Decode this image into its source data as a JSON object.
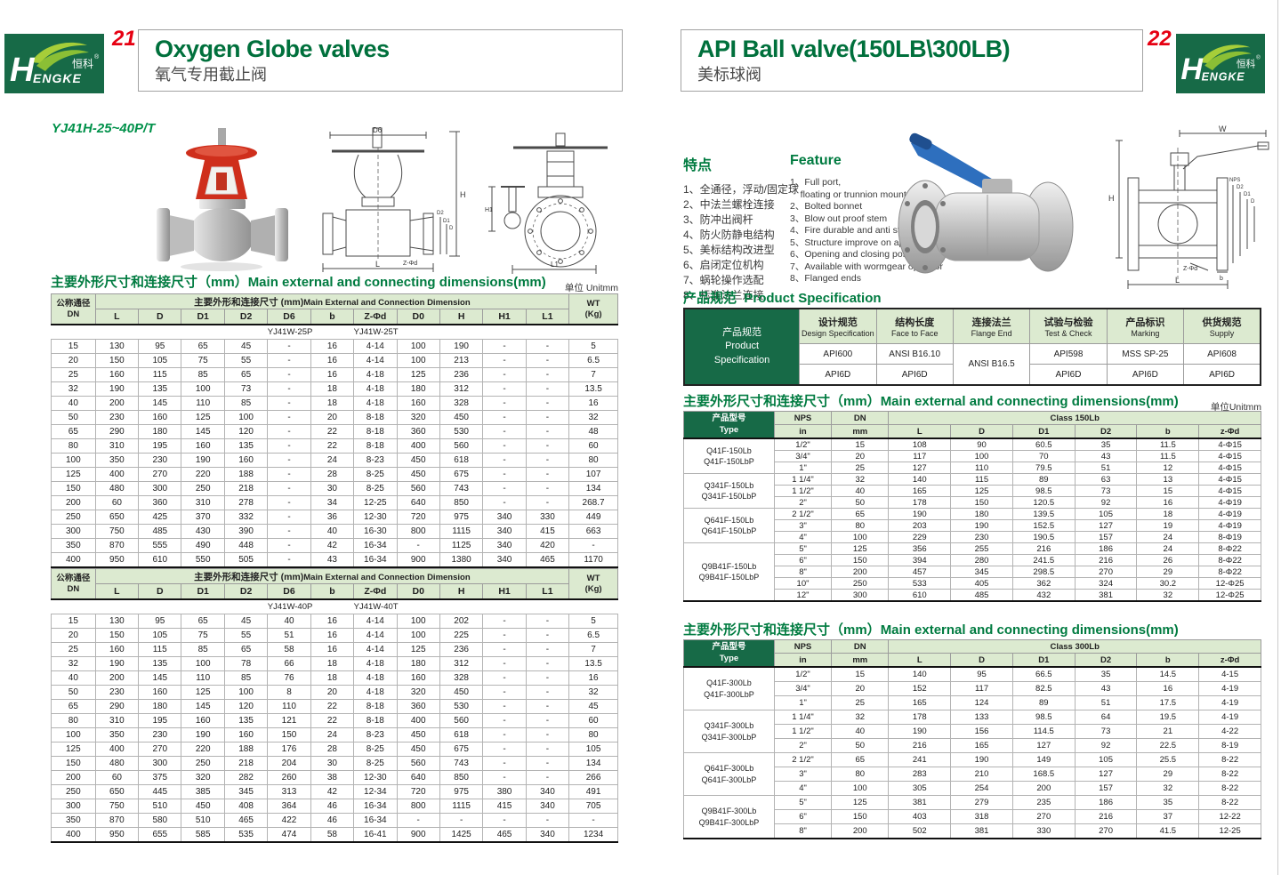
{
  "brand": {
    "latin": "HENGKE",
    "cn": "恒科",
    "reg": "®"
  },
  "page_left": {
    "page_number": "21",
    "title_en": "Oxygen Globe valves",
    "title_cn": "氧气专用截止阀",
    "model_label": "YJ41H-25~40P/T",
    "section_title_cn": "主要外形尺寸和连接尺寸（mm）",
    "section_title_en": "Main external and connecting dimensions(mm)",
    "unit_label": "单位 Unitmm",
    "table_header": {
      "dn_cn": "公称通径",
      "dn_en": "DN",
      "group_cn": "主要外形和连接尺寸 (mm)",
      "group_en": "Main External and Connection Dimension",
      "wt_line1": "WT",
      "wt_line2": "(Kg)",
      "columns": [
        "L",
        "D",
        "D1",
        "D2",
        "D6",
        "b",
        "Z-Φd",
        "D0",
        "H",
        "H1",
        "L1"
      ]
    },
    "tables": [
      {
        "models": [
          "YJ41W-25P",
          "YJ41W-25T"
        ],
        "rows": [
          [
            "15",
            "130",
            "95",
            "65",
            "45",
            "-",
            "16",
            "4-14",
            "100",
            "190",
            "-",
            "-",
            "5"
          ],
          [
            "20",
            "150",
            "105",
            "75",
            "55",
            "-",
            "16",
            "4-14",
            "100",
            "213",
            "-",
            "-",
            "6.5"
          ],
          [
            "25",
            "160",
            "115",
            "85",
            "65",
            "-",
            "16",
            "4-18",
            "125",
            "236",
            "-",
            "-",
            "7"
          ],
          [
            "32",
            "190",
            "135",
            "100",
            "73",
            "-",
            "18",
            "4-18",
            "180",
            "312",
            "-",
            "-",
            "13.5"
          ],
          [
            "40",
            "200",
            "145",
            "110",
            "85",
            "-",
            "18",
            "4-18",
            "160",
            "328",
            "-",
            "-",
            "16"
          ],
          [
            "50",
            "230",
            "160",
            "125",
            "100",
            "-",
            "20",
            "8-18",
            "320",
            "450",
            "-",
            "-",
            "32"
          ],
          [
            "65",
            "290",
            "180",
            "145",
            "120",
            "-",
            "22",
            "8-18",
            "360",
            "530",
            "-",
            "-",
            "48"
          ],
          [
            "80",
            "310",
            "195",
            "160",
            "135",
            "-",
            "22",
            "8-18",
            "400",
            "560",
            "-",
            "-",
            "60"
          ],
          [
            "100",
            "350",
            "230",
            "190",
            "160",
            "-",
            "24",
            "8-23",
            "450",
            "618",
            "-",
            "-",
            "80"
          ],
          [
            "125",
            "400",
            "270",
            "220",
            "188",
            "-",
            "28",
            "8-25",
            "450",
            "675",
            "-",
            "-",
            "107"
          ],
          [
            "150",
            "480",
            "300",
            "250",
            "218",
            "-",
            "30",
            "8-25",
            "560",
            "743",
            "-",
            "-",
            "134"
          ],
          [
            "200",
            "60",
            "360",
            "310",
            "278",
            "-",
            "34",
            "12-25",
            "640",
            "850",
            "-",
            "-",
            "268.7"
          ],
          [
            "250",
            "650",
            "425",
            "370",
            "332",
            "-",
            "36",
            "12-30",
            "720",
            "975",
            "340",
            "330",
            "449"
          ],
          [
            "300",
            "750",
            "485",
            "430",
            "390",
            "-",
            "40",
            "16-30",
            "800",
            "1115",
            "340",
            "415",
            "663"
          ],
          [
            "350",
            "870",
            "555",
            "490",
            "448",
            "-",
            "42",
            "16-34",
            "-",
            "1125",
            "340",
            "420",
            "-"
          ],
          [
            "400",
            "950",
            "610",
            "550",
            "505",
            "-",
            "43",
            "16-34",
            "900",
            "1380",
            "340",
            "465",
            "1170"
          ]
        ]
      },
      {
        "models": [
          "YJ41W-40P",
          "YJ41W-40T"
        ],
        "rows": [
          [
            "15",
            "130",
            "95",
            "65",
            "45",
            "40",
            "16",
            "4-14",
            "100",
            "202",
            "-",
            "-",
            "5"
          ],
          [
            "20",
            "150",
            "105",
            "75",
            "55",
            "51",
            "16",
            "4-14",
            "100",
            "225",
            "-",
            "-",
            "6.5"
          ],
          [
            "25",
            "160",
            "115",
            "85",
            "65",
            "58",
            "16",
            "4-14",
            "125",
            "236",
            "-",
            "-",
            "7"
          ],
          [
            "32",
            "190",
            "135",
            "100",
            "78",
            "66",
            "18",
            "4-18",
            "180",
            "312",
            "-",
            "-",
            "13.5"
          ],
          [
            "40",
            "200",
            "145",
            "110",
            "85",
            "76",
            "18",
            "4-18",
            "160",
            "328",
            "-",
            "-",
            "16"
          ],
          [
            "50",
            "230",
            "160",
            "125",
            "100",
            "8",
            "20",
            "4-18",
            "320",
            "450",
            "-",
            "-",
            "32"
          ],
          [
            "65",
            "290",
            "180",
            "145",
            "120",
            "110",
            "22",
            "8-18",
            "360",
            "530",
            "-",
            "-",
            "45"
          ],
          [
            "80",
            "310",
            "195",
            "160",
            "135",
            "121",
            "22",
            "8-18",
            "400",
            "560",
            "-",
            "-",
            "60"
          ],
          [
            "100",
            "350",
            "230",
            "190",
            "160",
            "150",
            "24",
            "8-23",
            "450",
            "618",
            "-",
            "-",
            "80"
          ],
          [
            "125",
            "400",
            "270",
            "220",
            "188",
            "176",
            "28",
            "8-25",
            "450",
            "675",
            "-",
            "-",
            "105"
          ],
          [
            "150",
            "480",
            "300",
            "250",
            "218",
            "204",
            "30",
            "8-25",
            "560",
            "743",
            "-",
            "-",
            "134"
          ],
          [
            "200",
            "60",
            "375",
            "320",
            "282",
            "260",
            "38",
            "12-30",
            "640",
            "850",
            "-",
            "-",
            "266"
          ],
          [
            "250",
            "650",
            "445",
            "385",
            "345",
            "313",
            "42",
            "12-34",
            "720",
            "975",
            "380",
            "340",
            "491"
          ],
          [
            "300",
            "750",
            "510",
            "450",
            "408",
            "364",
            "46",
            "16-34",
            "800",
            "1115",
            "415",
            "340",
            "705"
          ],
          [
            "350",
            "870",
            "580",
            "510",
            "465",
            "422",
            "46",
            "16-34",
            "-",
            "-",
            "-",
            "-",
            "-"
          ],
          [
            "400",
            "950",
            "655",
            "585",
            "535",
            "474",
            "58",
            "16-41",
            "900",
            "1425",
            "465",
            "340",
            "1234"
          ]
        ]
      }
    ],
    "drawing_labels": {
      "d6": "D6",
      "h": "H",
      "l": "L",
      "zfd": "Z-Φd",
      "d2": "D2",
      "d1": "D1",
      "d": "D",
      "h1": "H1",
      "l1": "L1"
    }
  },
  "page_right": {
    "page_number": "22",
    "title_en": "API Ball valve(150LB\\300LB)",
    "title_cn": "美标球阀",
    "features_cn": {
      "heading": "特点",
      "items": [
        "1、全通径，浮动/固定球",
        "2、中法兰螺栓连接",
        "3、防冲出阀杆",
        "4、防火防静电结构",
        "5、美标结构改进型",
        "6、启闭定位机构",
        "7、蜗轮操作选配",
        "8、标准法兰连接"
      ]
    },
    "features_en": {
      "heading": "Feature",
      "items": [
        "1、Full port,\n    floating or trunnion mounte type",
        "2、Bolted bonnet",
        "3、Blow out proof stem",
        "4、Fire durable and anti static safety",
        "5、Structure improve on api",
        "6、Opening and closing position",
        "7、Available with wormgear operator",
        "8、Flanged ends"
      ]
    },
    "spec": {
      "title_cn": "产品规范",
      "title_en": "Product Specification",
      "row_header": {
        "cn": "产品规范",
        "en1": "Product",
        "en2": "Specification"
      },
      "columns": [
        {
          "cn": "设计规范",
          "en": "Design Specification",
          "v1": "API600",
          "v2": "API6D"
        },
        {
          "cn": "结构长度",
          "en": "Face to Face",
          "v1": "ANSI B16.10",
          "v2": "API6D"
        },
        {
          "cn": "连接法兰",
          "en": "Flange End",
          "merged": "ANSI B16.5"
        },
        {
          "cn": "试验与检验",
          "en": "Test & Check",
          "v1": "API598",
          "v2": "API6D"
        },
        {
          "cn": "产品标识",
          "en": "Marking",
          "v1": "MSS SP-25",
          "v2": "API6D"
        },
        {
          "cn": "供货规范",
          "en": "Supply",
          "v1": "API608",
          "v2": "API6D"
        }
      ]
    },
    "dim150": {
      "section_title_cn": "主要外形尺寸和连接尺寸（mm）",
      "section_title_en": "Main external and connecting dimensions(mm)",
      "unit_label": "单位Unitmm",
      "header": {
        "type_cn": "产品型号",
        "type_en": "Type",
        "nps": "NPS",
        "dn": "DN",
        "in": "in",
        "mm": "mm",
        "class_label": "Class 150Lb",
        "columns": [
          "L",
          "D",
          "D1",
          "D2",
          "b",
          "z-Φd"
        ]
      },
      "groups": [
        {
          "type": [
            "Q41F-150Lb",
            "Q41F-150LbP"
          ],
          "rows": [
            [
              "1/2\"",
              "15",
              "108",
              "90",
              "60.5",
              "35",
              "11.5",
              "4-Φ15"
            ],
            [
              "3/4\"",
              "20",
              "117",
              "100",
              "70",
              "43",
              "11.5",
              "4-Φ15"
            ],
            [
              "1\"",
              "25",
              "127",
              "110",
              "79.5",
              "51",
              "12",
              "4-Φ15"
            ]
          ]
        },
        {
          "type": [
            "Q341F-150Lb",
            "Q341F-150LbP"
          ],
          "rows": [
            [
              "1 1/4\"",
              "32",
              "140",
              "115",
              "89",
              "63",
              "13",
              "4-Φ15"
            ],
            [
              "1 1/2\"",
              "40",
              "165",
              "125",
              "98.5",
              "73",
              "15",
              "4-Φ15"
            ],
            [
              "2\"",
              "50",
              "178",
              "150",
              "120.5",
              "92",
              "16",
              "4-Φ19"
            ]
          ]
        },
        {
          "type": [
            "Q641F-150Lb",
            "Q641F-150LbP"
          ],
          "rows": [
            [
              "2 1/2\"",
              "65",
              "190",
              "180",
              "139.5",
              "105",
              "18",
              "4-Φ19"
            ],
            [
              "3\"",
              "80",
              "203",
              "190",
              "152.5",
              "127",
              "19",
              "4-Φ19"
            ],
            [
              "4\"",
              "100",
              "229",
              "230",
              "190.5",
              "157",
              "24",
              "8-Φ19"
            ]
          ]
        },
        {
          "type": [
            "Q9B41F-150Lb",
            "Q9B41F-150LbP"
          ],
          "rows": [
            [
              "5\"",
              "125",
              "356",
              "255",
              "216",
              "186",
              "24",
              "8-Φ22"
            ],
            [
              "6\"",
              "150",
              "394",
              "280",
              "241.5",
              "216",
              "26",
              "8-Φ22"
            ],
            [
              "8\"",
              "200",
              "457",
              "345",
              "298.5",
              "270",
              "29",
              "8-Φ22"
            ],
            [
              "10\"",
              "250",
              "533",
              "405",
              "362",
              "324",
              "30.2",
              "12-Φ25"
            ],
            [
              "12\"",
              "300",
              "610",
              "485",
              "432",
              "381",
              "32",
              "12-Φ25"
            ]
          ]
        }
      ]
    },
    "dim300": {
      "section_title_cn": "主要外形尺寸和连接尺寸（mm）",
      "section_title_en": "Main external and connecting dimensions(mm)",
      "header": {
        "type_cn": "产品型号",
        "type_en": "Type",
        "nps": "NPS",
        "dn": "DN",
        "in": "in",
        "mm": "mm",
        "class_label": "Class 300Lb",
        "columns": [
          "L",
          "D",
          "D1",
          "D2",
          "b",
          "z-Φd"
        ]
      },
      "groups": [
        {
          "type": [
            "Q41F-300Lb",
            "Q41F-300LbP"
          ],
          "rows": [
            [
              "1/2\"",
              "15",
              "140",
              "95",
              "66.5",
              "35",
              "14.5",
              "4-15"
            ],
            [
              "3/4\"",
              "20",
              "152",
              "117",
              "82.5",
              "43",
              "16",
              "4-19"
            ],
            [
              "1\"",
              "25",
              "165",
              "124",
              "89",
              "51",
              "17.5",
              "4-19"
            ]
          ]
        },
        {
          "type": [
            "Q341F-300Lb",
            "Q341F-300LbP"
          ],
          "rows": [
            [
              "1 1/4\"",
              "32",
              "178",
              "133",
              "98.5",
              "64",
              "19.5",
              "4-19"
            ],
            [
              "1 1/2\"",
              "40",
              "190",
              "156",
              "114.5",
              "73",
              "21",
              "4-22"
            ],
            [
              "2\"",
              "50",
              "216",
              "165",
              "127",
              "92",
              "22.5",
              "8-19"
            ]
          ]
        },
        {
          "type": [
            "Q641F-300Lb",
            "Q641F-300LbP"
          ],
          "rows": [
            [
              "2 1/2\"",
              "65",
              "241",
              "190",
              "149",
              "105",
              "25.5",
              "8-22"
            ],
            [
              "3\"",
              "80",
              "283",
              "210",
              "168.5",
              "127",
              "29",
              "8-22"
            ],
            [
              "4\"",
              "100",
              "305",
              "254",
              "200",
              "157",
              "32",
              "8-22"
            ]
          ]
        },
        {
          "type": [
            "Q9B41F-300Lb",
            "Q9B41F-300LbP"
          ],
          "rows": [
            [
              "5\"",
              "125",
              "381",
              "279",
              "235",
              "186",
              "35",
              "8-22"
            ],
            [
              "6\"",
              "150",
              "403",
              "318",
              "270",
              "216",
              "37",
              "12-22"
            ],
            [
              "8\"",
              "200",
              "502",
              "381",
              "330",
              "270",
              "41.5",
              "12-25"
            ]
          ]
        }
      ]
    },
    "drawing_labels": {
      "w": "W",
      "h": "H",
      "nps": "NPS",
      "d2": "D2",
      "d1": "D1",
      "d": "D",
      "zfd": "Z-Φd",
      "b": "b",
      "l": "L"
    }
  }
}
